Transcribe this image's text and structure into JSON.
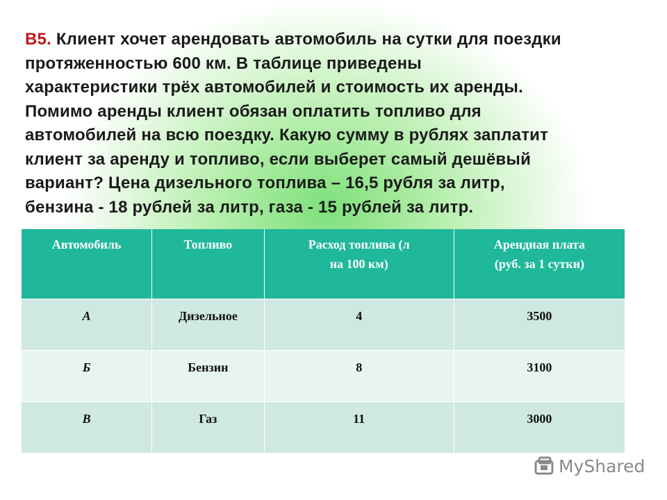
{
  "problem": {
    "label": "В5.",
    "lines": [
      "Клиент хочет арендовать автомобиль на сутки для поездки",
      "протяженностью 600 км. В таблице приведены",
      "характеристики трёх автомобилей и стоимость их аренды.",
      "Помимо аренды клиент обязан оплатить топливо  для",
      "автомобилей на всю поездку. Какую сумму в рублях заплатит",
      "клиент за аренду и топливо, если выберет самый дешёвый",
      "вариант?  Цена дизельного топлива – 16,5 рубля за литр,",
      "бензина - 18 рублей за литр, газа - 15 рублей за литр."
    ]
  },
  "table": {
    "header": [
      [
        "Автомобиль"
      ],
      [
        "Топливо"
      ],
      [
        "Расход топлива (л",
        "на 100 км)"
      ],
      [
        "Арендная плата",
        "(руб. за 1 сутки)"
      ]
    ],
    "rows": [
      [
        "А",
        "Дизельное",
        4,
        3500
      ],
      [
        "Б",
        "Бензин",
        8,
        3100
      ],
      [
        "В",
        "Газ",
        11,
        3000
      ]
    ]
  },
  "watermark": "MyShared"
}
